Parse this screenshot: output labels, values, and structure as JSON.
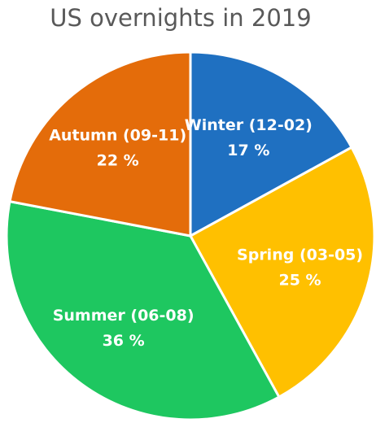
{
  "chart_data": {
    "type": "pie",
    "title": "US overnights in 2019",
    "categories": [
      "Winter (12-02)",
      "Spring (03-05)",
      "Summer (06-08)",
      "Autumn (09-11)"
    ],
    "values": [
      17,
      25,
      36,
      22
    ],
    "value_labels": [
      "17 %",
      "25 %",
      "36 %",
      "22 %"
    ],
    "colors": [
      "#1f70c1",
      "#ffc000",
      "#1ec760",
      "#e46c0a"
    ]
  }
}
